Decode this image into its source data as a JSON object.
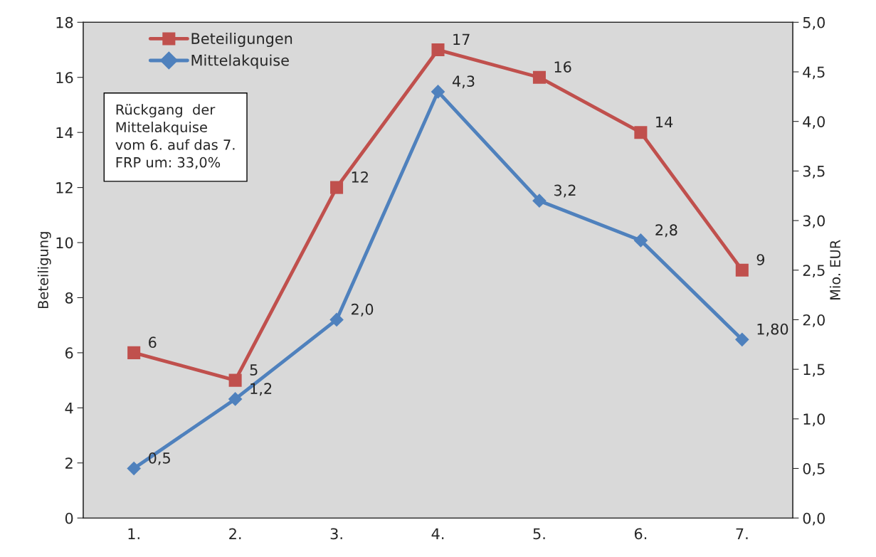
{
  "chart_data": {
    "type": "line",
    "categories": [
      "1.",
      "2.",
      "3.",
      "4.",
      "5.",
      "6.",
      "7."
    ],
    "ylabel": "Beteiligung",
    "y2label": "Mio. EUR",
    "ylim": [
      0,
      18
    ],
    "yticks": [
      0,
      2,
      4,
      6,
      8,
      10,
      12,
      14,
      16,
      18
    ],
    "y2lim": [
      0,
      5
    ],
    "y2ticks": [
      {
        "value": 0,
        "label": "0,0"
      },
      {
        "value": 0.5,
        "label": "0,5"
      },
      {
        "value": 1,
        "label": "1,0"
      },
      {
        "value": 1.5,
        "label": "1,5"
      },
      {
        "value": 2,
        "label": "2,0"
      },
      {
        "value": 2.5,
        "label": "2,5"
      },
      {
        "value": 3,
        "label": "3,0"
      },
      {
        "value": 3.5,
        "label": "3,5"
      },
      {
        "value": 4,
        "label": "4,0"
      },
      {
        "value": 4.5,
        "label": "4,5"
      },
      {
        "value": 5,
        "label": "5,0"
      }
    ],
    "series": [
      {
        "name": "Beteiligungen",
        "color": "#c0504d",
        "marker": "square",
        "values": [
          6,
          5,
          12,
          17,
          16,
          14,
          9
        ],
        "value_labels": [
          "6",
          "5",
          "12",
          "17",
          "16",
          "14",
          "9"
        ]
      },
      {
        "name": "Mittelakquise",
        "color": "#4f81bd",
        "marker": "diamond",
        "axis": "y2",
        "values": [
          0.5,
          1.2,
          2.0,
          4.3,
          3.2,
          2.8,
          1.8
        ],
        "value_labels": [
          "0,5",
          "1,2",
          "2,0",
          "4,3",
          "3,2",
          "2,8",
          "1,80"
        ]
      }
    ],
    "annotations": [
      "Rückgang  der\nMittelakquise\nvom 6. auf das 7.\nFRP um: 33,0%"
    ],
    "legend": "top left",
    "grid": false
  }
}
